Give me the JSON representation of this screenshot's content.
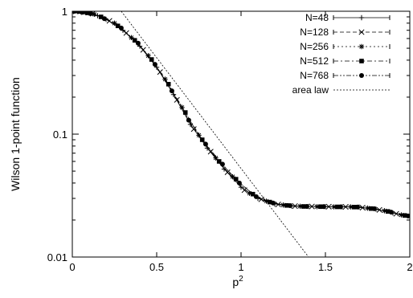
{
  "chart_data": {
    "type": "line",
    "xlabel": "p",
    "xlabel_superscript": "2",
    "ylabel": "Wilson 1-point function",
    "xlim": [
      0,
      2
    ],
    "ylim": [
      0.01,
      1
    ],
    "y_scale": "log",
    "grid": false,
    "legend_position": "top-right",
    "x_ticks": [
      {
        "value": 0,
        "label": "0"
      },
      {
        "value": 0.5,
        "label": "0.5"
      },
      {
        "value": 1,
        "label": "1"
      },
      {
        "value": 1.5,
        "label": "1.5"
      },
      {
        "value": 2,
        "label": "2"
      }
    ],
    "y_ticks": [
      {
        "value": 1,
        "label": "1"
      },
      {
        "value": 0.1,
        "label": "0.1"
      },
      {
        "value": 0.01,
        "label": "0.01"
      }
    ],
    "series": [
      {
        "name": "N=48",
        "marker": "plus",
        "dash": "solid",
        "x": [
          0,
          0.05,
          0.1,
          0.15,
          0.2,
          0.3,
          0.4,
          0.5,
          0.6,
          0.7,
          0.8,
          0.9,
          1.0,
          1.1,
          1.2,
          1.3,
          1.4,
          1.5,
          1.6,
          1.7,
          1.8,
          1.9,
          2.0
        ],
        "y": [
          1.0,
          0.99,
          0.965,
          0.92,
          0.86,
          0.7,
          0.52,
          0.35,
          0.21,
          0.12,
          0.077,
          0.052,
          0.037,
          0.03,
          0.027,
          0.026,
          0.0258,
          0.0257,
          0.0256,
          0.0255,
          0.0245,
          0.0228,
          0.0215
        ]
      },
      {
        "name": "N=128",
        "marker": "cross",
        "dash": "dashed",
        "x": [
          0.02,
          0.07,
          0.12,
          0.22,
          0.32,
          0.42,
          0.52,
          0.62,
          0.72,
          0.82,
          0.92,
          1.02,
          1.12,
          1.22,
          1.32,
          1.42,
          1.52,
          1.62,
          1.72,
          1.82,
          1.92
        ],
        "y": [
          0.998,
          0.98,
          0.955,
          0.835,
          0.665,
          0.485,
          0.32,
          0.19,
          0.11,
          0.072,
          0.049,
          0.035,
          0.0295,
          0.0268,
          0.026,
          0.0258,
          0.0257,
          0.0256,
          0.0252,
          0.0242,
          0.0225
        ]
      },
      {
        "name": "N=256",
        "marker": "star",
        "dash": "dotted",
        "x": [
          0.03,
          0.08,
          0.13,
          0.25,
          0.35,
          0.45,
          0.55,
          0.65,
          0.75,
          0.85,
          0.95,
          1.05,
          1.15,
          1.25,
          1.35,
          1.45,
          1.55,
          1.65,
          1.75,
          1.85,
          1.95
        ],
        "y": [
          0.997,
          0.975,
          0.945,
          0.8,
          0.61,
          0.435,
          0.28,
          0.165,
          0.098,
          0.064,
          0.045,
          0.033,
          0.0285,
          0.0265,
          0.0259,
          0.0257,
          0.0256,
          0.0256,
          0.025,
          0.0238,
          0.022
        ]
      },
      {
        "name": "N=512",
        "marker": "square",
        "dash": "dashdot",
        "x": [
          0.04,
          0.09,
          0.17,
          0.27,
          0.37,
          0.47,
          0.57,
          0.67,
          0.77,
          0.87,
          0.97,
          1.07,
          1.17,
          1.27,
          1.37,
          1.47,
          1.57,
          1.67,
          1.77,
          1.87,
          1.97
        ],
        "y": [
          0.995,
          0.97,
          0.9,
          0.76,
          0.58,
          0.405,
          0.255,
          0.15,
          0.09,
          0.06,
          0.043,
          0.0325,
          0.028,
          0.0263,
          0.0258,
          0.0257,
          0.0256,
          0.0255,
          0.0248,
          0.0235,
          0.0218
        ]
      },
      {
        "name": "N=768",
        "marker": "circle",
        "dash": "dashdotdot",
        "x": [
          0.01,
          0.06,
          0.11,
          0.19,
          0.29,
          0.39,
          0.49,
          0.59,
          0.69,
          0.79,
          0.89,
          0.99,
          1.09,
          1.19,
          1.29,
          1.39,
          1.49,
          1.59,
          1.69,
          1.79,
          1.89,
          1.99
        ],
        "y": [
          0.999,
          0.985,
          0.96,
          0.87,
          0.73,
          0.55,
          0.37,
          0.225,
          0.13,
          0.083,
          0.057,
          0.04,
          0.031,
          0.0275,
          0.0262,
          0.0258,
          0.0257,
          0.0256,
          0.0255,
          0.0247,
          0.0232,
          0.0216
        ]
      },
      {
        "name": "area law",
        "marker": "none",
        "dash": "dotted-fine",
        "x": [
          0.29,
          1.4
        ],
        "y": [
          1.0,
          0.01
        ]
      }
    ]
  }
}
